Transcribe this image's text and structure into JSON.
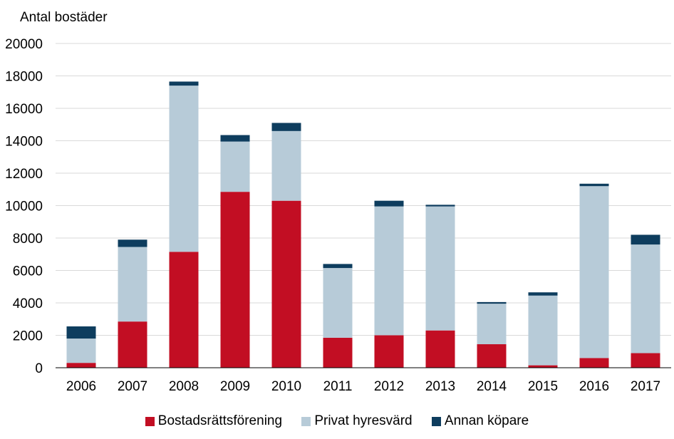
{
  "chart_data": {
    "type": "bar",
    "stacked": true,
    "ylabel": "Antal bostäder",
    "xlabel": "",
    "ylim": [
      0,
      20000
    ],
    "yticks": [
      0,
      2000,
      4000,
      6000,
      8000,
      10000,
      12000,
      14000,
      16000,
      18000,
      20000
    ],
    "grid": true,
    "legend_position": "bottom",
    "categories": [
      "2006",
      "2007",
      "2008",
      "2009",
      "2010",
      "2011",
      "2012",
      "2013",
      "2014",
      "2015",
      "2016",
      "2017"
    ],
    "series": [
      {
        "name": "Bostadsrättsförening",
        "color": "#c20e23",
        "values": [
          300,
          2850,
          7150,
          10850,
          10300,
          1850,
          2000,
          2300,
          1450,
          150,
          600,
          900
        ]
      },
      {
        "name": "Privat hyresvärd",
        "color": "#b7cbd8",
        "values": [
          1500,
          4600,
          10250,
          3100,
          4300,
          4300,
          7950,
          7650,
          2500,
          4300,
          10600,
          6700
        ]
      },
      {
        "name": "Annan köpare",
        "color": "#0e3d5e",
        "values": [
          750,
          450,
          250,
          400,
          500,
          250,
          350,
          100,
          100,
          200,
          150,
          600
        ]
      }
    ]
  }
}
